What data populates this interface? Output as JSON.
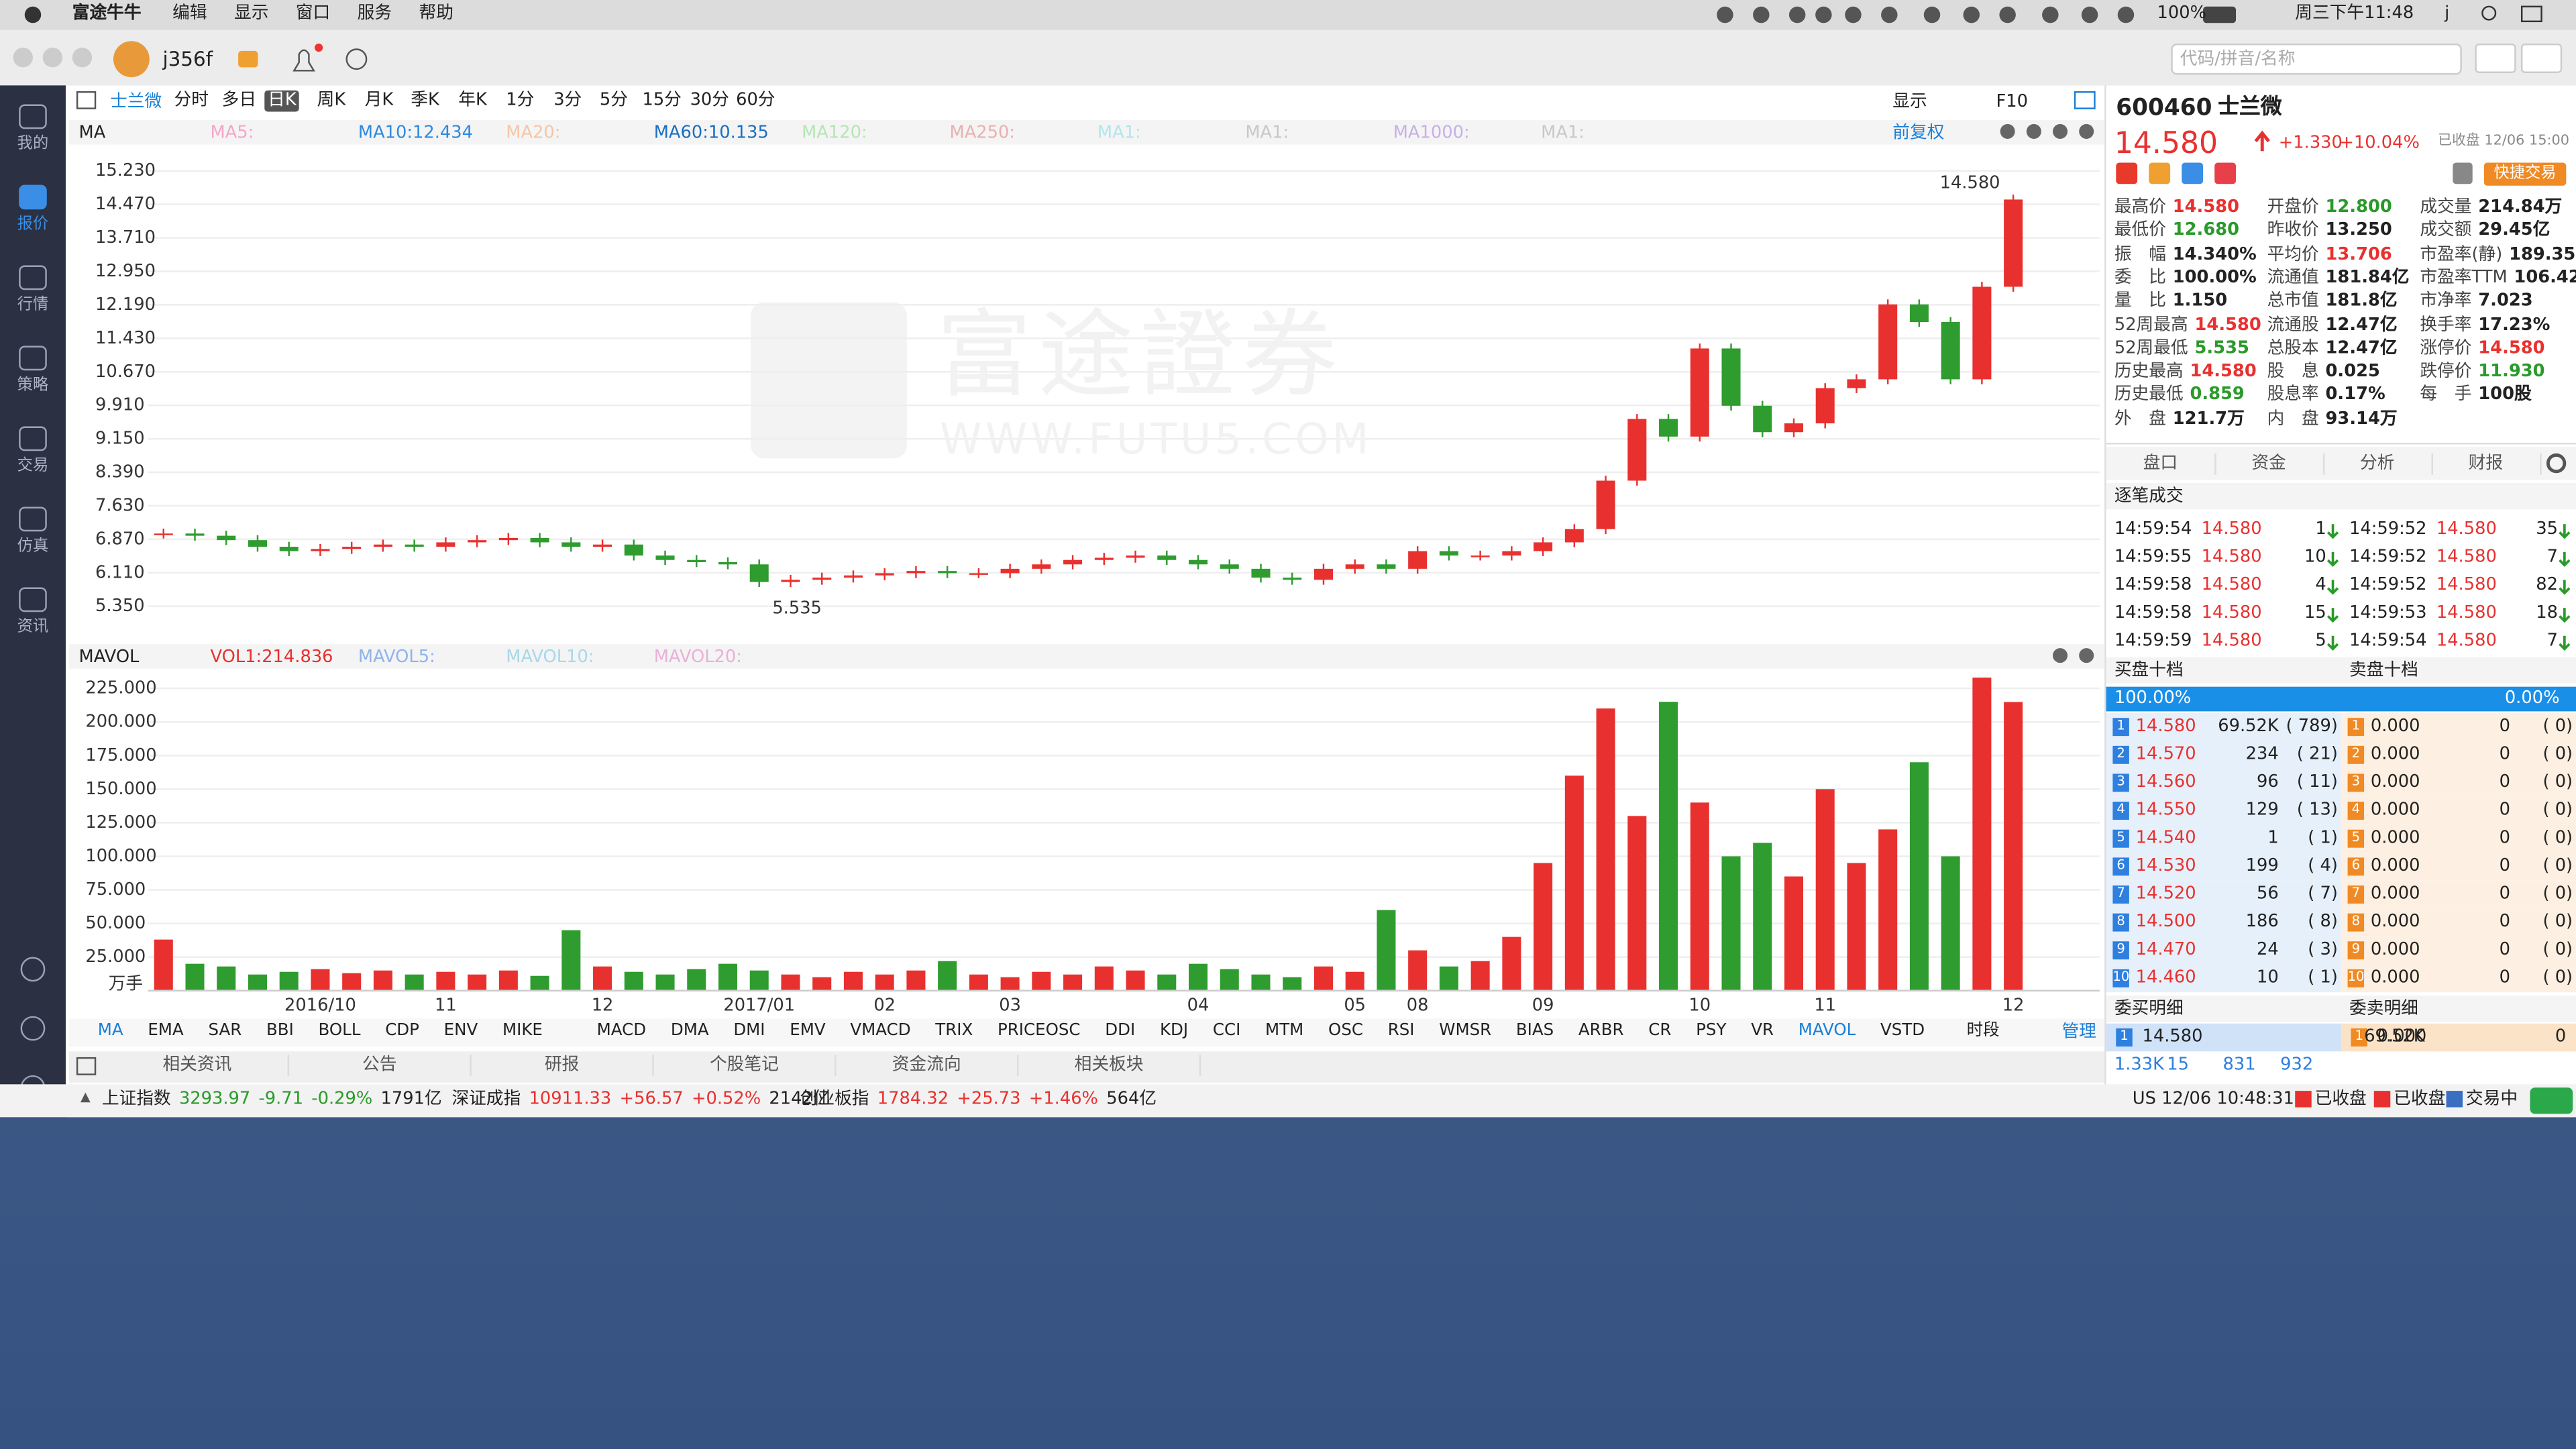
{
  "menubar": {
    "app": "富途牛牛",
    "items": [
      "编辑",
      "显示",
      "窗口",
      "服务",
      "帮助"
    ],
    "battery": "100%",
    "clock": "周三下午11:48",
    "user": "j"
  },
  "toolbar": {
    "user": "j356f",
    "search_placeholder": "代码/拼音/名称"
  },
  "nav": [
    "我的",
    "报价",
    "行情",
    "策略",
    "交易",
    "仿真",
    "资讯"
  ],
  "chart_toolbar": {
    "stock": "士兰微",
    "periods": [
      "分时",
      "多日",
      "日K",
      "周K",
      "月K",
      "季K",
      "年K",
      "1分",
      "3分",
      "5分",
      "15分",
      "30分",
      "60分"
    ],
    "active_period": 2,
    "display": "显示",
    "f10": "F10"
  },
  "ma_legend": {
    "title": "MA",
    "items": [
      {
        "text": "MA5:",
        "color": "#f3a6c8"
      },
      {
        "text": "MA10:12.434",
        "color": "#2d8ae0"
      },
      {
        "text": "MA20:",
        "color": "#f5c6a8"
      },
      {
        "text": "MA60:10.135",
        "color": "#1a6fc0"
      },
      {
        "text": "MA120:",
        "color": "#b4e6b4"
      },
      {
        "text": "MA250:",
        "color": "#eab0b0"
      },
      {
        "text": "MA1:",
        "color": "#b0e6ea"
      },
      {
        "text": "MA1:",
        "color": "#c8c8c8"
      },
      {
        "text": "MA1000:",
        "color": "#c8b0e6"
      },
      {
        "text": "MA1:",
        "color": "#c8c8c8"
      }
    ],
    "adjust": "前复权"
  },
  "watermark": [
    "富途證券",
    "WWW.FUTU5.COM"
  ],
  "chart_data": [
    {
      "type": "candlestick",
      "title": "MA",
      "color_up": "#e8312f",
      "color_down": "#2f9c2f",
      "categories": [
        null,
        null,
        null,
        null,
        null,
        "2016/10",
        null,
        null,
        null,
        "11",
        null,
        null,
        null,
        null,
        "12",
        null,
        null,
        null,
        null,
        "2017/01",
        null,
        null,
        null,
        "02",
        null,
        null,
        null,
        "03",
        null,
        null,
        null,
        null,
        null,
        "04",
        null,
        null,
        null,
        null,
        "05",
        null,
        "08",
        null,
        null,
        null,
        "09",
        null,
        null,
        null,
        null,
        "10",
        null,
        null,
        null,
        "11",
        null,
        null,
        null,
        null,
        null,
        "12"
      ],
      "values": [
        7.0,
        6.95,
        6.85,
        6.7,
        6.6,
        6.65,
        6.7,
        6.75,
        6.7,
        6.8,
        6.85,
        6.9,
        6.8,
        6.7,
        6.75,
        6.5,
        6.4,
        6.35,
        6.3,
        5.9,
        5.95,
        6.0,
        6.05,
        6.1,
        6.15,
        6.1,
        6.1,
        6.2,
        6.3,
        6.4,
        6.45,
        6.5,
        6.4,
        6.3,
        6.2,
        6.0,
        5.95,
        6.2,
        6.3,
        6.2,
        6.6,
        6.5,
        6.5,
        6.6,
        6.8,
        7.1,
        8.2,
        9.6,
        9.2,
        11.2,
        9.9,
        9.3,
        9.5,
        10.3,
        10.5,
        12.2,
        11.8,
        10.5,
        12.6,
        14.58
      ],
      "ylim": [
        4.642,
        15.827
      ],
      "yticks": [
        {
          "value": 15.23,
          "label": "15.230"
        },
        {
          "value": 14.47,
          "label": "14.470"
        },
        {
          "value": 13.71,
          "label": "13.710"
        },
        {
          "value": 12.95,
          "label": "12.950"
        },
        {
          "value": 12.19,
          "label": "12.190"
        },
        {
          "value": 11.43,
          "label": "11.430"
        },
        {
          "value": 10.67,
          "label": "10.670"
        },
        {
          "value": 9.91,
          "label": "9.910"
        },
        {
          "value": 9.15,
          "label": "9.150"
        },
        {
          "value": 8.39,
          "label": "8.390"
        },
        {
          "value": 7.63,
          "label": "7.630"
        },
        {
          "value": 6.87,
          "label": "6.870"
        },
        {
          "value": 6.11,
          "label": "6.110"
        },
        {
          "value": 5.35,
          "label": "5.350"
        }
      ],
      "annotations": {
        "high": "14.580",
        "low": "5.535"
      },
      "grid": true
    },
    {
      "type": "bar",
      "title": "MAVOL",
      "legend": [
        {
          "text": "VOL1:214.836",
          "color": "#e8312f"
        },
        {
          "text": "MAVOL5:",
          "color": "#8fb4ea"
        },
        {
          "text": "MAVOL10:",
          "color": "#a8d8ea"
        },
        {
          "text": "MAVOL20:",
          "color": "#eab0d8"
        }
      ],
      "values": [
        38,
        20,
        18,
        12,
        14,
        16,
        13,
        15,
        12,
        14,
        12,
        15,
        11,
        45,
        18,
        14,
        12,
        16,
        20,
        15,
        12,
        10,
        14,
        12,
        15,
        22,
        12,
        10,
        14,
        12,
        18,
        15,
        12,
        20,
        16,
        12,
        10,
        18,
        14,
        60,
        30,
        18,
        22,
        40,
        95,
        160,
        210,
        130,
        215,
        140,
        100,
        110,
        85,
        150,
        95,
        120,
        170,
        100,
        233,
        214.836
      ],
      "ylim": [
        0,
        236
      ],
      "yticks": [
        {
          "value": 225,
          "label": "225.000"
        },
        {
          "value": 200,
          "label": "200.000"
        },
        {
          "value": 175,
          "label": "175.000"
        },
        {
          "value": 150,
          "label": "150.000"
        },
        {
          "value": 125,
          "label": "125.000"
        },
        {
          "value": 100,
          "label": "100.000"
        },
        {
          "value": 75,
          "label": "75.000"
        },
        {
          "value": 50,
          "label": "50.000"
        },
        {
          "value": 25,
          "label": "25.000"
        }
      ],
      "unit": "万手",
      "grid": true
    }
  ],
  "indicators": {
    "items": [
      "MA",
      "EMA",
      "SAR",
      "BBI",
      "BOLL",
      "CDP",
      "ENV",
      "MIKE",
      "MACD",
      "DMA",
      "DMI",
      "EMV",
      "VMACD",
      "TRIX",
      "PRICEOSC",
      "DDI",
      "KDJ",
      "CCI",
      "MTM",
      "OSC",
      "RSI",
      "WMSR",
      "BIAS",
      "ARBR",
      "CR",
      "PSY",
      "VR",
      "MAVOL",
      "VSTD",
      "时段"
    ],
    "active": [
      0,
      27
    ],
    "manage": "管理"
  },
  "news_tabs": [
    "相关资讯",
    "公告",
    "研报",
    "个股笔记",
    "资金流向",
    "相关板块"
  ],
  "indices": [
    {
      "name": "上证指数",
      "price": "3293.97",
      "change": "-9.71",
      "pct": "-0.29%",
      "turnover": "1791亿",
      "dir": "down"
    },
    {
      "name": "深证成指",
      "price": "10911.33",
      "change": "+56.57",
      "pct": "+0.52%",
      "turnover": "2142亿",
      "dir": "up"
    },
    {
      "name": "创业板指",
      "price": "1784.32",
      "change": "+25.73",
      "pct": "+1.46%",
      "turnover": "564亿",
      "dir": "up"
    }
  ],
  "quote": {
    "code": "600460",
    "name": "士兰微",
    "price": "14.580",
    "change": "+1.330",
    "pct": "+10.04%",
    "status": "已收盘 12/06 15:00",
    "quick_trade": "快捷交易",
    "stats": [
      [
        "最高价",
        "14.580",
        "up"
      ],
      [
        "开盘价",
        "12.800",
        "down"
      ],
      [
        "成交量",
        "214.84万",
        ""
      ],
      [
        "最低价",
        "12.680",
        "down"
      ],
      [
        "昨收价",
        "13.250",
        ""
      ],
      [
        "成交额",
        "29.45亿",
        ""
      ],
      [
        "振　幅",
        "14.340%",
        ""
      ],
      [
        "平均价",
        "13.706",
        "up"
      ],
      [
        "市盈率(静)",
        "189.350",
        ""
      ],
      [
        "委　比",
        "100.00%",
        ""
      ],
      [
        "流通值",
        "181.84亿",
        ""
      ],
      [
        "市盈率TTM",
        "106.423",
        ""
      ],
      [
        "量　比",
        "1.150",
        ""
      ],
      [
        "总市值",
        "181.8亿",
        ""
      ],
      [
        "市净率",
        "7.023",
        ""
      ],
      [
        "52周最高",
        "14.580",
        "up"
      ],
      [
        "流通股",
        "12.47亿",
        ""
      ],
      [
        "换手率",
        "17.23%",
        ""
      ],
      [
        "52周最低",
        "5.535",
        "down"
      ],
      [
        "总股本",
        "12.47亿",
        ""
      ],
      [
        "涨停价",
        "14.580",
        "up"
      ],
      [
        "历史最高",
        "14.580",
        "up"
      ],
      [
        "股　息",
        "0.025",
        ""
      ],
      [
        "跌停价",
        "11.930",
        "down"
      ],
      [
        "历史最低",
        "0.859",
        "down"
      ],
      [
        "股息率",
        "0.17%",
        ""
      ],
      [
        "每　手",
        "100股",
        ""
      ],
      [
        "外　盘",
        "121.7万",
        ""
      ],
      [
        "内　盘",
        "93.14万",
        ""
      ]
    ],
    "tabs": [
      "盘口",
      "资金",
      "分析",
      "财报"
    ],
    "trades_title": "逐笔成交",
    "trades": [
      [
        [
          "14:59:54",
          "14.580",
          "1"
        ],
        [
          "14:59:55",
          "14.580",
          "10"
        ],
        [
          "14:59:58",
          "14.580",
          "4"
        ],
        [
          "14:59:58",
          "14.580",
          "15"
        ],
        [
          "14:59:59",
          "14.580",
          "5"
        ]
      ],
      [
        [
          "14:59:52",
          "14.580",
          "35"
        ],
        [
          "14:59:52",
          "14.580",
          "7"
        ],
        [
          "14:59:52",
          "14.580",
          "82"
        ],
        [
          "14:59:53",
          "14.580",
          "18"
        ],
        [
          "14:59:54",
          "14.580",
          "7"
        ]
      ]
    ],
    "bid_title": "买盘十档",
    "ask_title": "卖盘十档",
    "bid_ratio": "100.00%",
    "ask_ratio": "0.00%",
    "levels": [
      "1",
      "2",
      "3",
      "4",
      "5",
      "6",
      "7",
      "8",
      "9",
      "10"
    ],
    "bids": [
      [
        "14.580",
        "69.52K",
        "( 789)"
      ],
      [
        "14.570",
        "234",
        "( 21)"
      ],
      [
        "14.560",
        "96",
        "( 11)"
      ],
      [
        "14.550",
        "129",
        "( 13)"
      ],
      [
        "14.540",
        "1",
        "( 1)"
      ],
      [
        "14.530",
        "199",
        "( 4)"
      ],
      [
        "14.520",
        "56",
        "( 7)"
      ],
      [
        "14.500",
        "186",
        "( 8)"
      ],
      [
        "14.470",
        "24",
        "( 3)"
      ],
      [
        "14.460",
        "10",
        "( 1)"
      ]
    ],
    "asks": [
      [
        "0.000",
        "0",
        "( 0)"
      ],
      [
        "0.000",
        "0",
        "( 0)"
      ],
      [
        "0.000",
        "0",
        "( 0)"
      ],
      [
        "0.000",
        "0",
        "( 0)"
      ],
      [
        "0.000",
        "0",
        "( 0)"
      ],
      [
        "0.000",
        "0",
        "( 0)"
      ],
      [
        "0.000",
        "0",
        "( 0)"
      ],
      [
        "0.000",
        "0",
        "( 0)"
      ],
      [
        "0.000",
        "0",
        "( 0)"
      ],
      [
        "0.000",
        "0",
        "( 0)"
      ]
    ],
    "bid_detail_title": "委买明细",
    "ask_detail_title": "委卖明细",
    "bid_detail": [
      "1",
      "14.580",
      "69.52K"
    ],
    "ask_detail": [
      "1",
      "0.000",
      "0"
    ],
    "detail_counts": [
      "1.33K",
      "15",
      "831",
      "932"
    ]
  },
  "statusbar": {
    "time": "US 12/06 10:48:31",
    "markets": [
      "已收盘",
      "已收盘",
      "交易中"
    ]
  }
}
